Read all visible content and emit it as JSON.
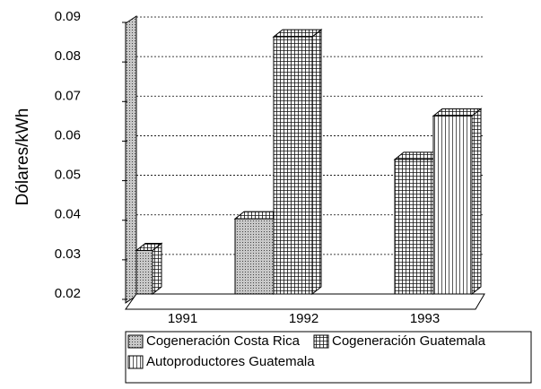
{
  "chart_data": {
    "type": "bar",
    "y_label": "Dólares/kWh",
    "categories": [
      "1991",
      "1992",
      "1993"
    ],
    "series": [
      {
        "name": "Cogeneración Costa Rica",
        "color": "#b8b8b8",
        "values": [
          0.031,
          0.039,
          null
        ]
      },
      {
        "name": "Cogeneración Guatemala",
        "color": "#ffffff",
        "values": [
          null,
          0.085,
          0.054
        ]
      },
      {
        "name": "Autoproductores Guatemala",
        "color": "#ffffff",
        "values": [
          null,
          null,
          0.065
        ]
      }
    ],
    "ylim": [
      0.02,
      0.09
    ],
    "yticks": [
      0.02,
      0.03,
      0.04,
      0.05,
      0.06,
      0.07,
      0.08,
      0.09
    ],
    "grid": true
  }
}
